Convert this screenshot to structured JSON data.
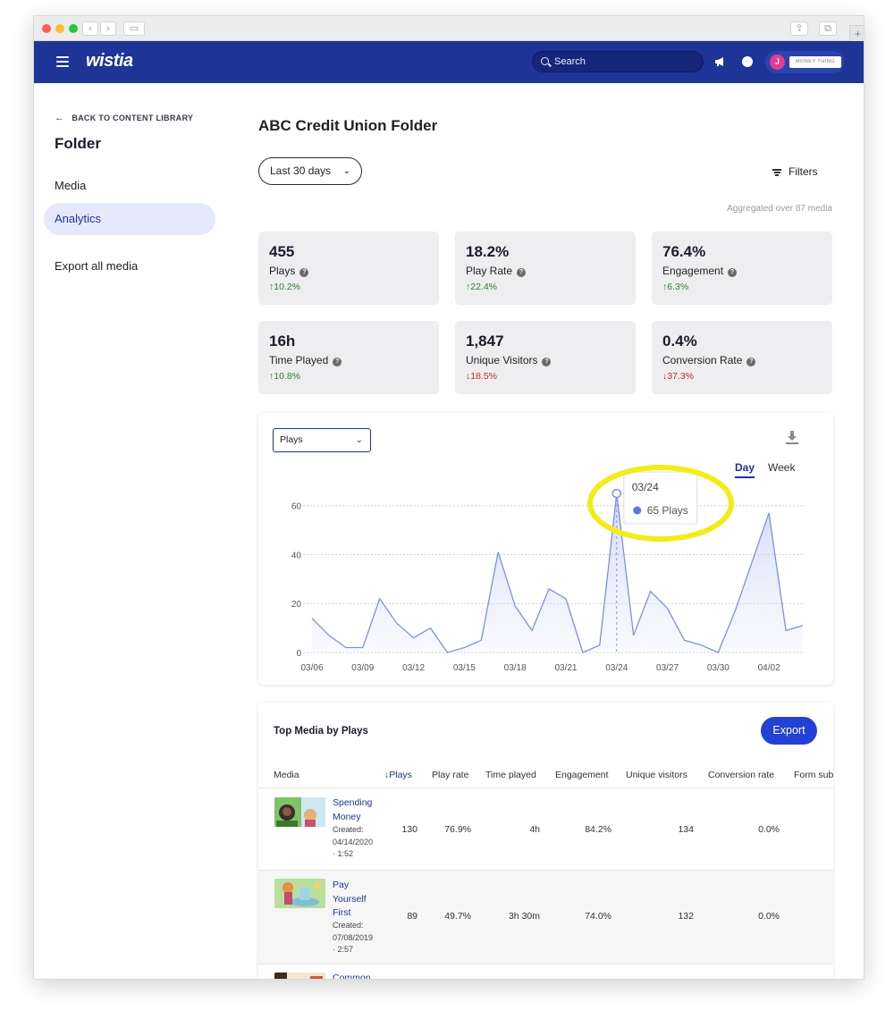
{
  "header": {
    "logo": "wistia",
    "search_placeholder": "Search",
    "avatar_initial": "J",
    "account_name": "MONEY THING"
  },
  "sidebar": {
    "back_label": "BACK TO CONTENT LIBRARY",
    "title": "Folder",
    "items": [
      {
        "label": "Media",
        "active": false
      },
      {
        "label": "Analytics",
        "active": true
      },
      {
        "label": "Export all media",
        "active": false
      }
    ]
  },
  "main": {
    "title": "ABC Credit Union Folder",
    "date_range": "Last 30 days",
    "filters_label": "Filters",
    "aggregated_note": "Aggregated over 87 media"
  },
  "stats": [
    {
      "value": "455",
      "label": "Plays",
      "change": "10.2%",
      "direction": "up"
    },
    {
      "value": "18.2%",
      "label": "Play Rate",
      "change": "22.4%",
      "direction": "up"
    },
    {
      "value": "76.4%",
      "label": "Engagement",
      "change": "6.3%",
      "direction": "up"
    },
    {
      "value": "16h",
      "label": "Time Played",
      "change": "10.8%",
      "direction": "up"
    },
    {
      "value": "1,847",
      "label": "Unique Visitors",
      "change": "18.5%",
      "direction": "down"
    },
    {
      "value": "0.4%",
      "label": "Conversion Rate",
      "change": "37.3%",
      "direction": "down"
    }
  ],
  "chart_controls": {
    "metric": "Plays",
    "tab_day": "Day",
    "tab_week": "Week"
  },
  "chart_data": {
    "type": "area",
    "x": [
      "03/06",
      "03/07",
      "03/08",
      "03/09",
      "03/10",
      "03/11",
      "03/12",
      "03/13",
      "03/14",
      "03/15",
      "03/16",
      "03/17",
      "03/18",
      "03/19",
      "03/20",
      "03/21",
      "03/22",
      "03/23",
      "03/24",
      "03/25",
      "03/26",
      "03/27",
      "03/28",
      "03/29",
      "03/30",
      "03/31",
      "04/01",
      "04/02",
      "04/03",
      "04/04"
    ],
    "x_tick_labels": [
      "03/06",
      "03/09",
      "03/12",
      "03/15",
      "03/18",
      "03/21",
      "03/24",
      "03/27",
      "03/30",
      "04/02"
    ],
    "series": [
      {
        "values": [
          14,
          7,
          2,
          2,
          22,
          12,
          6,
          10,
          0,
          2,
          5,
          41,
          19,
          9,
          26,
          22,
          0,
          3,
          65,
          7,
          25,
          18,
          5,
          3,
          0,
          17,
          37,
          57,
          9,
          11
        ]
      }
    ],
    "ylim": [
      0,
      65
    ],
    "yticks": [
      0,
      20,
      40,
      60
    ],
    "grid": true,
    "tooltip": {
      "date": "03/24",
      "text": "65 Plays"
    },
    "color": "#7b91e6"
  },
  "top_media": {
    "title": "Top Media by Plays",
    "export_label": "Export",
    "columns": [
      "Media",
      "Plays",
      "Play rate",
      "Time played",
      "Engagement",
      "Unique visitors",
      "Conversion rate",
      "Form sub"
    ],
    "rows": [
      {
        "name_lines": [
          "Spending",
          "Money"
        ],
        "meta_lines": [
          "Created:",
          "04/14/2020",
          "· 1:52"
        ],
        "plays": "130",
        "play_rate": "76.9%",
        "time_played": "4h",
        "engagement": "84.2%",
        "unique_visitors": "134",
        "conversion_rate": "0.0%"
      },
      {
        "name_lines": [
          "Pay",
          "Yourself",
          "First"
        ],
        "meta_lines": [
          "Created:",
          "07/08/2019",
          "· 2:57"
        ],
        "plays": "89",
        "play_rate": "49.7%",
        "time_played": "3h 30m",
        "engagement": "74.0%",
        "unique_visitors": "132",
        "conversion_rate": "0.0%"
      },
      {
        "name_lines": [
          "Common"
        ],
        "meta_lines": []
      }
    ]
  }
}
